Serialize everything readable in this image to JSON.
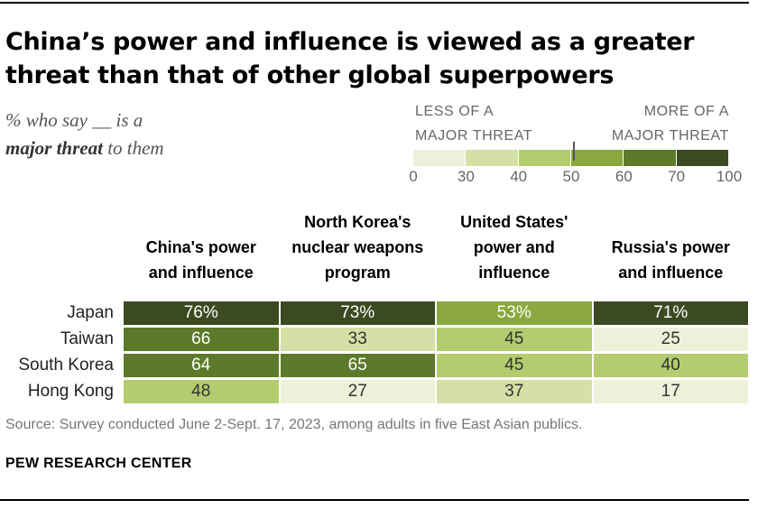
{
  "chart_data": {
    "type": "heatmap",
    "title": "China’s power and influence is viewed as a greater threat than that of other global superpowers",
    "subtitle": {
      "prefix": "% who say __ is a",
      "emphasis": "major threat",
      "suffix": "to them"
    },
    "columns": [
      {
        "id": "china",
        "line1": "China's power",
        "line2": "and influence",
        "line3": ""
      },
      {
        "id": "nkorea",
        "line1": "North Korea's",
        "line2": "nuclear weapons",
        "line3": "program"
      },
      {
        "id": "us",
        "line1": "United States'",
        "line2": "power and",
        "line3": "influence"
      },
      {
        "id": "russia",
        "line1": "Russia's power",
        "line2": "and influence",
        "line3": ""
      }
    ],
    "rows": [
      {
        "label": "Japan",
        "values": [
          76,
          73,
          53,
          71
        ],
        "display": [
          "76%",
          "73%",
          "53%",
          "71%"
        ]
      },
      {
        "label": "Taiwan",
        "values": [
          66,
          33,
          45,
          25
        ],
        "display": [
          "66",
          "33",
          "45",
          "25"
        ]
      },
      {
        "label": "South Korea",
        "values": [
          64,
          65,
          45,
          40
        ],
        "display": [
          "64",
          "65",
          "45",
          "40"
        ]
      },
      {
        "label": "Hong Kong",
        "values": [
          48,
          27,
          37,
          17
        ],
        "display": [
          "48",
          "27",
          "37",
          "17"
        ]
      }
    ],
    "legend": {
      "less_line1": "LESS OF A",
      "less_line2": "MAJOR THREAT",
      "more_line1": "MORE OF A",
      "more_line2": "MAJOR THREAT",
      "ticks": [
        "0",
        "30",
        "40",
        "50",
        "60",
        "70",
        "100"
      ],
      "bins": [
        [
          0,
          30
        ],
        [
          30,
          40
        ],
        [
          40,
          50
        ],
        [
          50,
          60
        ],
        [
          60,
          70
        ],
        [
          70,
          100
        ]
      ],
      "colors": [
        "#eef1d9",
        "#d5e0a6",
        "#b3cc6f",
        "#8aa83d",
        "#5d7a2b",
        "#3c4a21"
      ],
      "marker_value": 50
    },
    "source": "Source: Survey conducted June 2-Sept. 17, 2023, among adults in five East Asian publics."
  },
  "footer": {
    "org": "PEW RESEARCH CENTER"
  }
}
